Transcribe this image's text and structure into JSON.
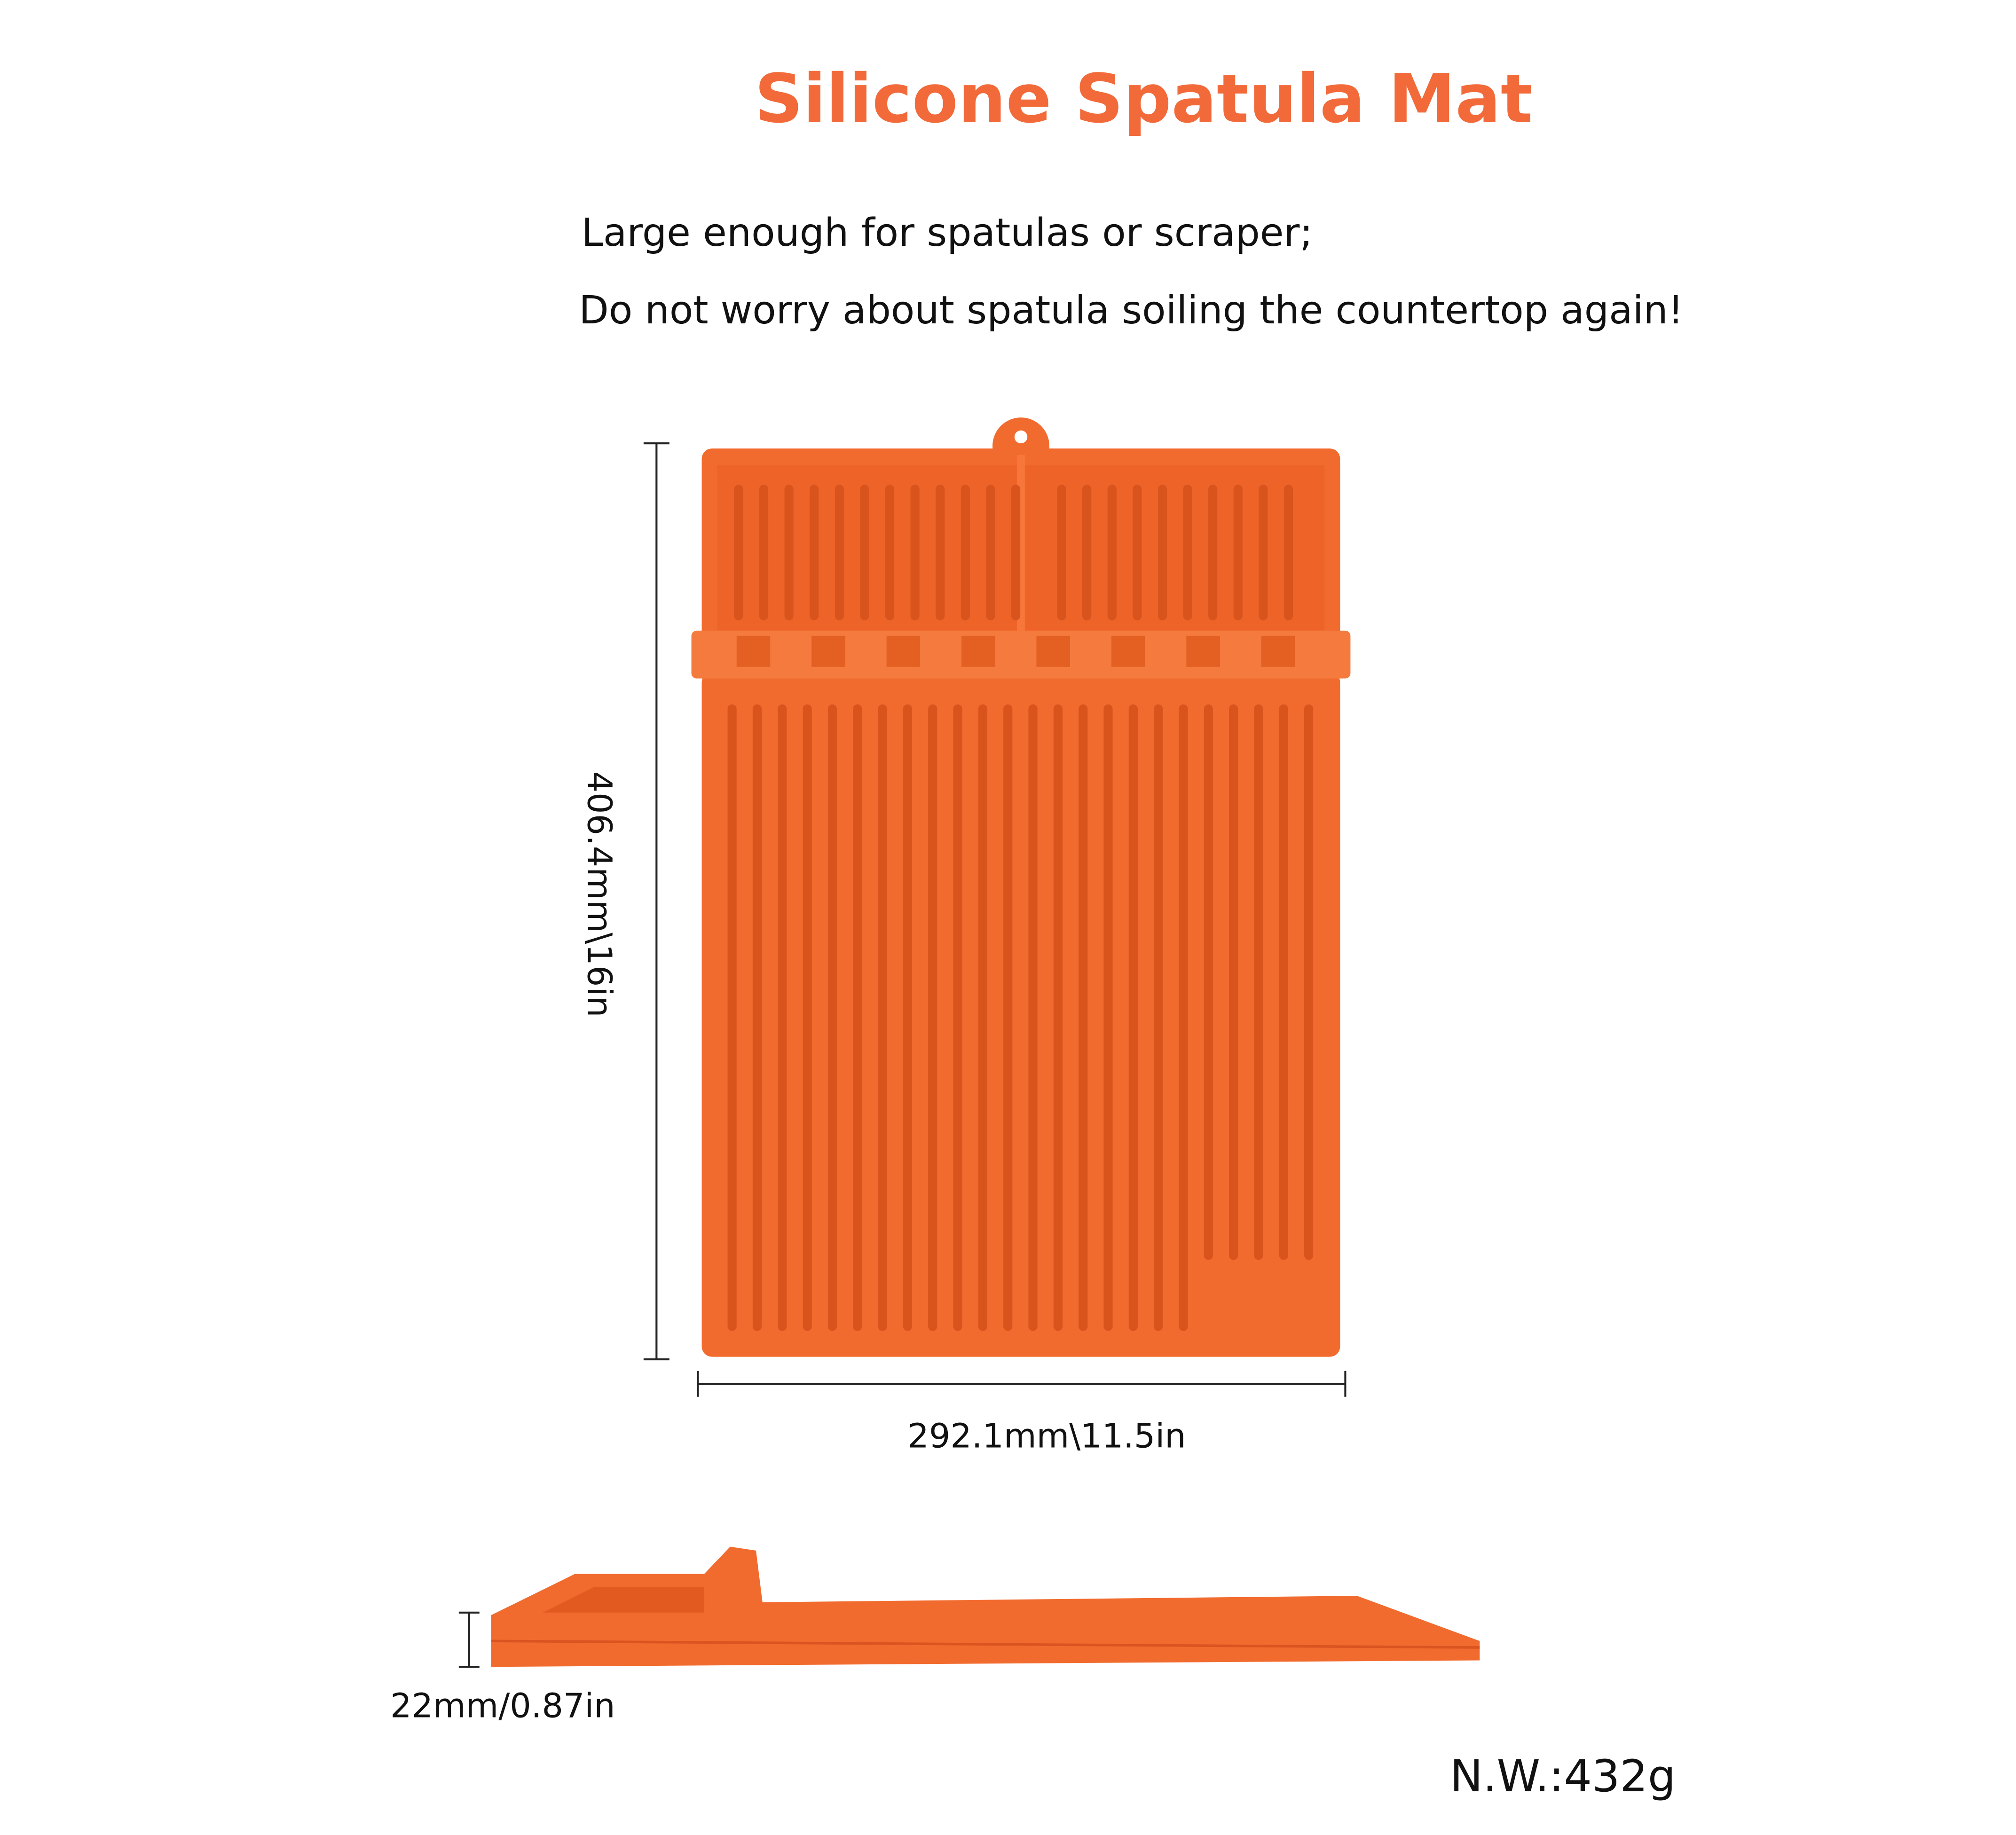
{
  "header": {
    "title": "Silicone Spatula Mat",
    "lines": [
      "Large enough for spatulas or scraper;",
      "Do not worry about spatula soiling the countertop again!"
    ]
  },
  "dimensions": {
    "height": "406.4mm\\16in",
    "width": "292.1mm\\11.5in",
    "thickness": "22mm/0.87in"
  },
  "weight": "N.W.:432g"
}
